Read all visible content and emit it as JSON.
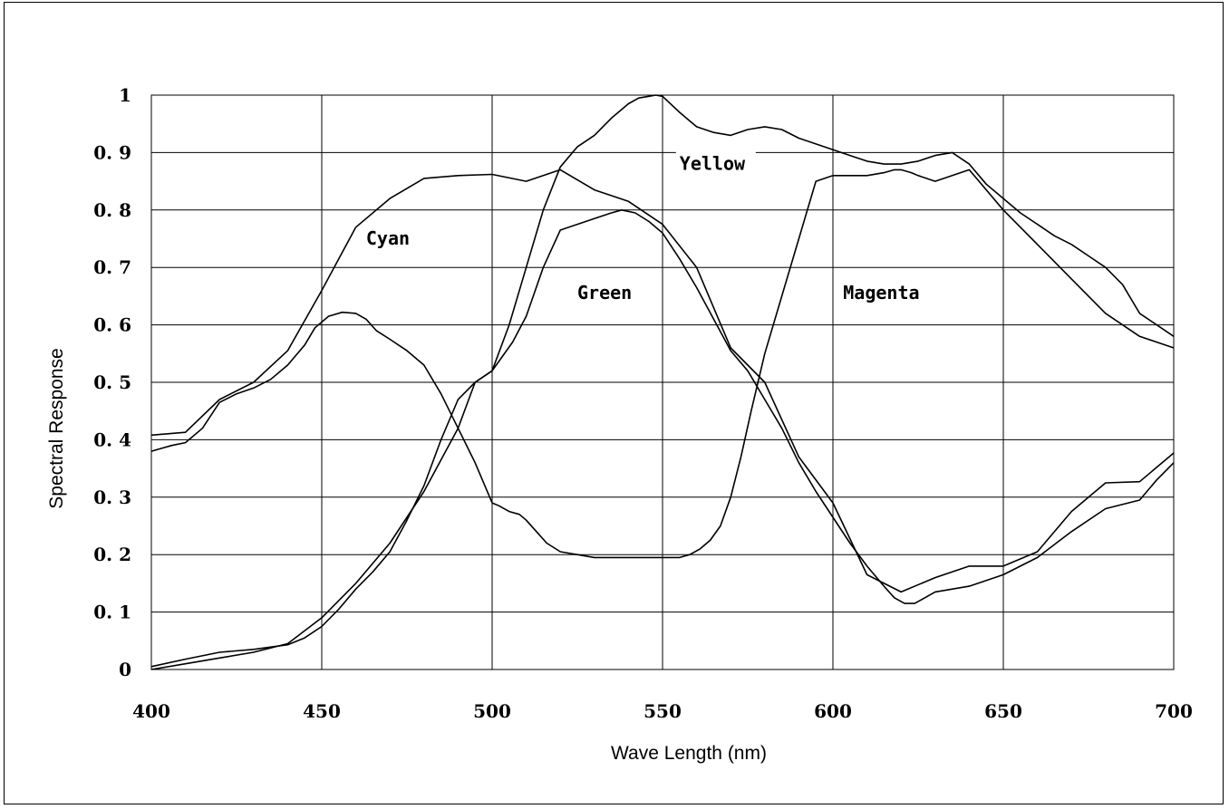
{
  "chart_data": {
    "type": "line",
    "title": "",
    "xlabel": "Wave Length (nm)",
    "ylabel": "Spectral Response",
    "xlim": [
      400,
      700
    ],
    "ylim": [
      0,
      1
    ],
    "x_ticks": [
      "400",
      "450",
      "500",
      "550",
      "600",
      "650",
      "700"
    ],
    "y_ticks": [
      "0",
      "0. 1",
      "0. 2",
      "0. 3",
      "0. 4",
      "0. 5",
      "0. 6",
      "0. 7",
      "0. 8",
      "0. 9",
      "1"
    ],
    "grid": true,
    "legend": "none",
    "series": [
      {
        "name": "Cyan",
        "x": [
          400,
          403,
          406,
          410,
          415,
          420,
          425,
          430,
          435,
          440,
          445,
          448,
          452,
          456,
          460,
          463,
          466,
          470,
          475,
          480,
          485,
          490,
          495,
          500,
          502,
          505,
          508,
          510,
          513,
          516,
          520,
          525,
          530,
          535,
          540,
          545,
          550,
          555,
          558,
          561,
          564,
          567,
          570,
          573,
          576,
          580,
          585,
          590,
          595,
          600,
          605,
          610,
          615,
          618,
          620,
          623,
          625,
          630,
          640,
          650,
          660,
          670,
          680,
          690,
          695,
          700
        ],
        "y": [
          0.38,
          0.385,
          0.39,
          0.395,
          0.42,
          0.465,
          0.48,
          0.49,
          0.505,
          0.53,
          0.565,
          0.595,
          0.615,
          0.622,
          0.62,
          0.61,
          0.59,
          0.575,
          0.555,
          0.53,
          0.48,
          0.42,
          0.36,
          0.29,
          0.285,
          0.275,
          0.27,
          0.26,
          0.24,
          0.22,
          0.205,
          0.2,
          0.195,
          0.195,
          0.195,
          0.195,
          0.195,
          0.195,
          0.2,
          0.21,
          0.225,
          0.25,
          0.3,
          0.37,
          0.45,
          0.55,
          0.65,
          0.75,
          0.85,
          0.86,
          0.86,
          0.86,
          0.865,
          0.87,
          0.87,
          0.865,
          0.86,
          0.85,
          0.87,
          0.8,
          0.74,
          0.68,
          0.62,
          0.58,
          0.57,
          0.56
        ]
      },
      {
        "name": "Green",
        "x": [
          400,
          410,
          420,
          430,
          440,
          445,
          450,
          455,
          460,
          465,
          470,
          475,
          480,
          485,
          490,
          495,
          500,
          503,
          506,
          510,
          515,
          520,
          525,
          530,
          535,
          538,
          542,
          546,
          550,
          555,
          560,
          565,
          570,
          575,
          580,
          585,
          590,
          595,
          600,
          605,
          610,
          615,
          618,
          621,
          624,
          627,
          630,
          640,
          650,
          660,
          670,
          680,
          690,
          695,
          700
        ],
        "y": [
          0.005,
          0.018,
          0.03,
          0.035,
          0.043,
          0.055,
          0.075,
          0.105,
          0.14,
          0.17,
          0.205,
          0.26,
          0.32,
          0.4,
          0.47,
          0.5,
          0.52,
          0.545,
          0.57,
          0.615,
          0.7,
          0.765,
          0.775,
          0.785,
          0.795,
          0.8,
          0.795,
          0.78,
          0.76,
          0.715,
          0.665,
          0.61,
          0.555,
          0.52,
          0.47,
          0.42,
          0.36,
          0.31,
          0.265,
          0.22,
          0.18,
          0.145,
          0.125,
          0.115,
          0.115,
          0.125,
          0.135,
          0.145,
          0.165,
          0.195,
          0.24,
          0.28,
          0.295,
          0.33,
          0.36
        ]
      },
      {
        "name": "Yellow",
        "x": [
          400,
          410,
          420,
          430,
          440,
          450,
          460,
          470,
          480,
          490,
          500,
          510,
          520,
          530,
          540,
          550,
          560,
          570,
          580,
          590,
          600,
          610,
          620,
          630,
          640,
          650,
          660,
          670,
          680,
          690,
          700
        ],
        "y": [
          0.408,
          0.413,
          0.47,
          0.5,
          0.555,
          0.66,
          0.77,
          0.82,
          0.855,
          0.86,
          0.862,
          0.85,
          0.87,
          0.835,
          0.815,
          0.775,
          0.7,
          0.56,
          0.5,
          0.37,
          0.29,
          0.165,
          0.135,
          0.16,
          0.18,
          0.18,
          0.205,
          0.275,
          0.325,
          0.327,
          0.377
        ]
      },
      {
        "name": "Magenta",
        "x": [
          400,
          410,
          420,
          430,
          440,
          450,
          460,
          470,
          480,
          490,
          495,
          500,
          505,
          510,
          515,
          520,
          525,
          530,
          535,
          540,
          543,
          546,
          548,
          550,
          555,
          560,
          565,
          570,
          575,
          580,
          585,
          590,
          595,
          600,
          605,
          610,
          615,
          620,
          625,
          630,
          635,
          640,
          645,
          650,
          655,
          660,
          665,
          670,
          675,
          680,
          685,
          690,
          695,
          700
        ],
        "y": [
          0.0,
          0.01,
          0.02,
          0.03,
          0.045,
          0.09,
          0.15,
          0.22,
          0.31,
          0.42,
          0.5,
          0.52,
          0.6,
          0.7,
          0.8,
          0.875,
          0.91,
          0.93,
          0.96,
          0.985,
          0.995,
          0.998,
          1.0,
          0.998,
          0.97,
          0.945,
          0.935,
          0.93,
          0.94,
          0.945,
          0.94,
          0.925,
          0.915,
          0.905,
          0.895,
          0.885,
          0.88,
          0.88,
          0.885,
          0.895,
          0.9,
          0.88,
          0.845,
          0.82,
          0.795,
          0.775,
          0.755,
          0.74,
          0.72,
          0.7,
          0.67,
          0.62,
          0.6,
          0.58
        ]
      }
    ],
    "annotations": [
      {
        "text": "Cyan",
        "x": 463,
        "y": 0.74
      },
      {
        "text": "Green",
        "x": 525,
        "y": 0.645
      },
      {
        "text": "Yellow",
        "x": 555,
        "y": 0.87
      },
      {
        "text": "Magenta",
        "x": 603,
        "y": 0.645
      }
    ]
  }
}
